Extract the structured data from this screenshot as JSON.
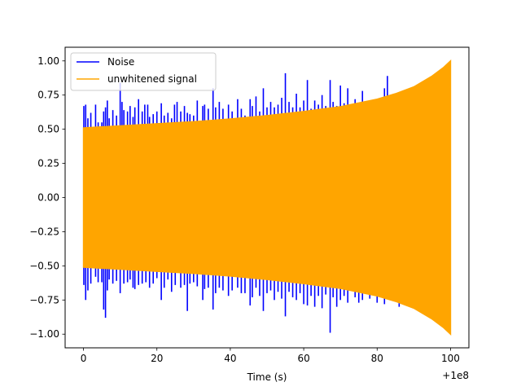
{
  "chart_data": {
    "type": "line",
    "title": "",
    "xlabel": "Time (s)",
    "ylabel": "",
    "x_offset_label": "+1e8",
    "xlim": [
      -5,
      105
    ],
    "ylim": [
      -1.1,
      1.1
    ],
    "x_ticks": [
      0,
      20,
      40,
      60,
      80,
      100
    ],
    "x_tick_labels": [
      "0",
      "20",
      "40",
      "60",
      "80",
      "100"
    ],
    "y_ticks": [
      -1.0,
      -0.75,
      -0.5,
      -0.25,
      0.0,
      0.25,
      0.5,
      0.75,
      1.0
    ],
    "y_tick_labels": [
      "−1.00",
      "−0.75",
      "−0.50",
      "−0.25",
      "0.00",
      "0.25",
      "0.50",
      "0.75",
      "1.00"
    ],
    "grid": false,
    "legend_position": "top-left",
    "series": [
      {
        "name": "Noise",
        "color": "#0000ff",
        "x_range": [
          0,
          100
        ],
        "spikes_upper": [
          [
            0.1,
            0.67
          ],
          [
            0.6,
            0.68
          ],
          [
            1.2,
            0.58
          ],
          [
            2.0,
            0.62
          ],
          [
            3.3,
            0.68
          ],
          [
            4.0,
            0.55
          ],
          [
            5.0,
            0.55
          ],
          [
            5.5,
            0.63
          ],
          [
            6.0,
            0.66
          ],
          [
            6.5,
            0.71
          ],
          [
            7.0,
            0.58
          ],
          [
            8.0,
            0.64
          ],
          [
            9.0,
            0.6
          ],
          [
            10.0,
            0.84
          ],
          [
            10.5,
            0.7
          ],
          [
            11.0,
            0.64
          ],
          [
            12.0,
            0.63
          ],
          [
            12.7,
            0.67
          ],
          [
            13.5,
            0.59
          ],
          [
            14.0,
            0.66
          ],
          [
            15.0,
            0.72
          ],
          [
            16.0,
            0.63
          ],
          [
            16.7,
            0.68
          ],
          [
            17.5,
            0.68
          ],
          [
            18.0,
            0.59
          ],
          [
            19.0,
            0.61
          ],
          [
            20.0,
            0.63
          ],
          [
            21.2,
            0.69
          ],
          [
            22.0,
            0.6
          ],
          [
            23.0,
            0.62
          ],
          [
            24.0,
            0.58
          ],
          [
            24.8,
            0.68
          ],
          [
            25.5,
            0.7
          ],
          [
            26.5,
            0.63
          ],
          [
            27.5,
            0.67
          ],
          [
            28.3,
            0.62
          ],
          [
            29.0,
            0.61
          ],
          [
            30.0,
            0.6
          ],
          [
            31.0,
            0.71
          ],
          [
            32.5,
            0.67
          ],
          [
            33.0,
            0.68
          ],
          [
            34.0,
            0.65
          ],
          [
            35.3,
            0.8
          ],
          [
            36.0,
            0.66
          ],
          [
            37.0,
            0.7
          ],
          [
            38.0,
            0.65
          ],
          [
            39.5,
            0.68
          ],
          [
            40.5,
            0.63
          ],
          [
            42.0,
            0.72
          ],
          [
            43.0,
            0.65
          ],
          [
            44.0,
            0.6
          ],
          [
            45.4,
            0.72
          ],
          [
            46.0,
            0.67
          ],
          [
            47.0,
            0.74
          ],
          [
            48.0,
            0.63
          ],
          [
            49.0,
            0.8
          ],
          [
            50.0,
            0.66
          ],
          [
            51.0,
            0.7
          ],
          [
            52.0,
            0.66
          ],
          [
            53.0,
            0.68
          ],
          [
            54.0,
            0.73
          ],
          [
            55.0,
            0.91
          ],
          [
            56.0,
            0.7
          ],
          [
            57.0,
            0.66
          ],
          [
            58.0,
            0.76
          ],
          [
            59.0,
            0.66
          ],
          [
            60.0,
            0.71
          ],
          [
            61.0,
            0.86
          ],
          [
            62.0,
            0.65
          ],
          [
            63.0,
            0.71
          ],
          [
            64.0,
            0.68
          ],
          [
            65.0,
            0.75
          ],
          [
            66.0,
            0.67
          ],
          [
            67.2,
            0.86
          ],
          [
            68.0,
            0.7
          ],
          [
            69.0,
            0.67
          ],
          [
            70.0,
            0.82
          ],
          [
            71.0,
            0.69
          ],
          [
            72.0,
            0.8
          ],
          [
            74.0,
            0.72
          ],
          [
            76.0,
            0.78
          ],
          [
            78.0,
            0.7
          ],
          [
            80.0,
            0.71
          ],
          [
            82.0,
            0.8
          ],
          [
            82.8,
            0.89
          ]
        ],
        "spikes_lower": [
          [
            0.1,
            -0.64
          ],
          [
            0.6,
            -0.75
          ],
          [
            1.2,
            -0.68
          ],
          [
            2.0,
            -0.63
          ],
          [
            3.3,
            -0.58
          ],
          [
            4.0,
            -0.62
          ],
          [
            5.0,
            -0.62
          ],
          [
            5.5,
            -0.82
          ],
          [
            6.0,
            -0.88
          ],
          [
            6.5,
            -0.68
          ],
          [
            7.0,
            -0.6
          ],
          [
            8.0,
            -0.63
          ],
          [
            9.0,
            -0.61
          ],
          [
            10.0,
            -0.7
          ],
          [
            11.0,
            -0.63
          ],
          [
            12.0,
            -0.62
          ],
          [
            12.7,
            -0.6
          ],
          [
            13.5,
            -0.66
          ],
          [
            14.0,
            -0.67
          ],
          [
            15.0,
            -0.64
          ],
          [
            16.0,
            -0.63
          ],
          [
            17.0,
            -0.62
          ],
          [
            18.0,
            -0.66
          ],
          [
            19.0,
            -0.63
          ],
          [
            20.0,
            -0.59
          ],
          [
            21.2,
            -0.75
          ],
          [
            22.0,
            -0.66
          ],
          [
            23.0,
            -0.6
          ],
          [
            24.0,
            -0.69
          ],
          [
            25.0,
            -0.64
          ],
          [
            26.5,
            -0.66
          ],
          [
            27.5,
            -0.64
          ],
          [
            28.3,
            -0.83
          ],
          [
            29.0,
            -0.63
          ],
          [
            30.0,
            -0.62
          ],
          [
            31.0,
            -0.65
          ],
          [
            32.5,
            -0.75
          ],
          [
            33.0,
            -0.67
          ],
          [
            34.0,
            -0.66
          ],
          [
            35.3,
            -0.82
          ],
          [
            36.0,
            -0.7
          ],
          [
            37.0,
            -0.66
          ],
          [
            38.0,
            -0.68
          ],
          [
            39.5,
            -0.72
          ],
          [
            40.5,
            -0.68
          ],
          [
            42.0,
            -0.66
          ],
          [
            43.0,
            -0.7
          ],
          [
            44.0,
            -0.7
          ],
          [
            45.4,
            -0.79
          ],
          [
            46.0,
            -0.73
          ],
          [
            47.0,
            -0.66
          ],
          [
            48.0,
            -0.72
          ],
          [
            49.0,
            -0.83
          ],
          [
            50.0,
            -0.7
          ],
          [
            51.0,
            -0.68
          ],
          [
            52.0,
            -0.75
          ],
          [
            53.0,
            -0.69
          ],
          [
            54.0,
            -0.74
          ],
          [
            55.0,
            -0.87
          ],
          [
            56.0,
            -0.69
          ],
          [
            57.0,
            -0.73
          ],
          [
            58.0,
            -0.75
          ],
          [
            59.0,
            -0.7
          ],
          [
            60.0,
            -0.78
          ],
          [
            61.0,
            -0.79
          ],
          [
            62.0,
            -0.72
          ],
          [
            63.0,
            -0.8
          ],
          [
            64.0,
            -0.72
          ],
          [
            65.0,
            -0.81
          ],
          [
            66.0,
            -0.71
          ],
          [
            67.2,
            -0.99
          ],
          [
            68.0,
            -0.73
          ],
          [
            69.0,
            -0.8
          ],
          [
            70.0,
            -0.75
          ],
          [
            71.0,
            -0.72
          ],
          [
            72.0,
            -0.77
          ],
          [
            74.0,
            -0.73
          ],
          [
            75.0,
            -0.77
          ],
          [
            76.0,
            -0.75
          ],
          [
            78.0,
            -0.74
          ],
          [
            80.0,
            -0.77
          ],
          [
            82.0,
            -0.78
          ],
          [
            86.0,
            -0.8
          ]
        ]
      },
      {
        "name": "unwhitened signal",
        "color": "#ffa500",
        "x_range": [
          0,
          100
        ],
        "envelope": [
          [
            0,
            0.51
          ],
          [
            10,
            0.525
          ],
          [
            20,
            0.54
          ],
          [
            30,
            0.555
          ],
          [
            40,
            0.575
          ],
          [
            50,
            0.6
          ],
          [
            60,
            0.63
          ],
          [
            70,
            0.665
          ],
          [
            80,
            0.72
          ],
          [
            85,
            0.76
          ],
          [
            90,
            0.81
          ],
          [
            95,
            0.89
          ],
          [
            98,
            0.95
          ],
          [
            100,
            1.0
          ]
        ]
      }
    ]
  }
}
